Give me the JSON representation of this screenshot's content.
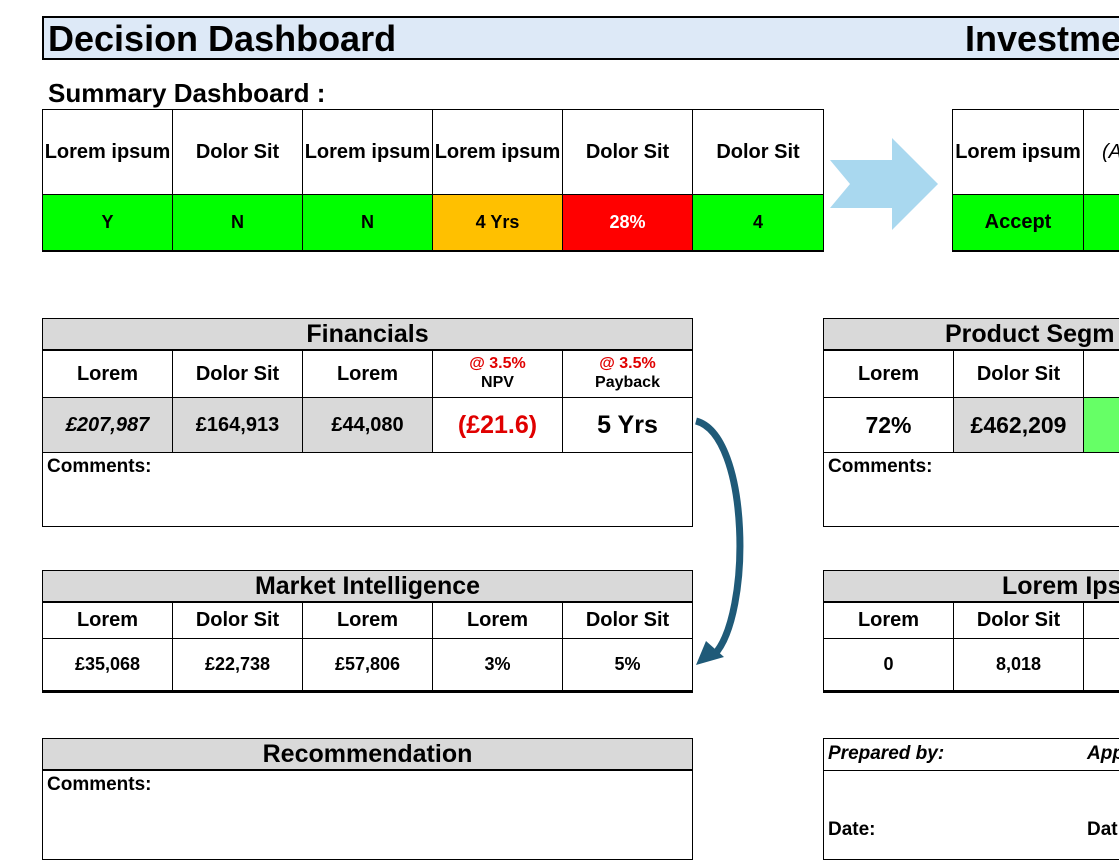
{
  "header": {
    "title_left": "Decision Dashboard",
    "title_right": "Investme"
  },
  "summary": {
    "label": "Summary Dashboard :",
    "headers": [
      "Lorem ipsum",
      "Dolor Sit",
      "Lorem ipsum",
      "Lorem ipsum",
      "Dolor Sit",
      "Dolor Sit"
    ],
    "values": [
      "Y",
      "N",
      "N",
      "4 Yrs",
      "28%",
      "4"
    ],
    "value_colors": [
      "green",
      "green",
      "green",
      "amber",
      "red",
      "green"
    ],
    "right_header": "Lorem ipsum",
    "right_header_partial": "(A",
    "right_value": "Accept"
  },
  "financials": {
    "title": "Financials",
    "headers": [
      "Lorem",
      "Dolor Sit",
      "Lorem"
    ],
    "npv_rate": "@ 3.5%",
    "npv_label": "NPV",
    "payback_rate": "@ 3.5%",
    "payback_label": "Payback",
    "values": [
      "£207,987",
      "£164,913",
      "£44,080",
      "(£21.6)",
      "5 Yrs"
    ],
    "comments_label": "Comments:"
  },
  "product": {
    "title": "Product Segm",
    "headers": [
      "Lorem",
      "Dolor Sit"
    ],
    "values": [
      "72%",
      "£462,209"
    ],
    "comments_label": "Comments:"
  },
  "market": {
    "title": "Market Intelligence",
    "headers": [
      "Lorem",
      "Dolor Sit",
      "Lorem",
      "Lorem",
      "Dolor Sit"
    ],
    "values": [
      "£35,068",
      "£22,738",
      "£57,806",
      "3%",
      "5%"
    ]
  },
  "lorem_section": {
    "title": "Lorem Ips",
    "headers": [
      "Lorem",
      "Dolor Sit"
    ],
    "values": [
      "0",
      "8,018"
    ]
  },
  "recommendation": {
    "title": "Recommendation",
    "comments_label": "Comments:"
  },
  "signoff": {
    "prepared_by": "Prepared by:",
    "approved_partial": "App",
    "date_label": "Date:",
    "date_partial": "Dat"
  },
  "colors": {
    "green": "#00ff00",
    "amber": "#ffc000",
    "red": "#ff0000",
    "light_green": "#66ff66",
    "header_gray": "#d9d9d9",
    "title_bar": "#dde9f7",
    "arrow_blue": "#a9d8ef",
    "curve_arrow": "#1f5a78",
    "negative_text": "#e00000"
  }
}
